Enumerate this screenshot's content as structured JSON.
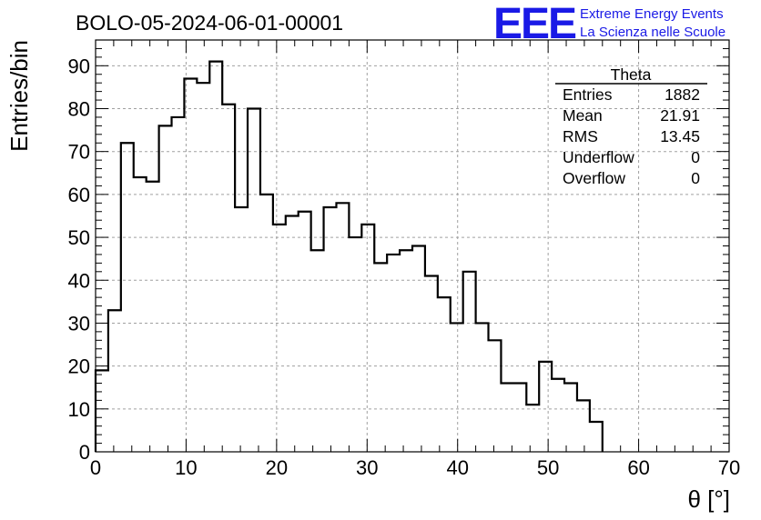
{
  "header": {
    "run_title": "BOLO-05-2024-06-01-00001",
    "logo_text": "EEE",
    "logo_line1": "Extreme Energy Events",
    "logo_line2": "La Scienza nelle Scuole"
  },
  "stats_box": {
    "title": "Theta",
    "rows": [
      {
        "label": "Entries",
        "value": "1882"
      },
      {
        "label": "Mean",
        "value": "21.91"
      },
      {
        "label": "RMS",
        "value": "13.45"
      },
      {
        "label": "Underflow",
        "value": "0"
      },
      {
        "label": "Overflow",
        "value": "0"
      }
    ]
  },
  "chart_data": {
    "type": "histogram",
    "title": "BOLO-05-2024-06-01-00001",
    "xlabel": "θ [°]",
    "ylabel": "Entries/bin",
    "xlim": [
      0,
      70
    ],
    "ylim": [
      0,
      96
    ],
    "grid": true,
    "legend": "top-right stats box",
    "bin_width": 1.4,
    "bin_start": 0,
    "x_ticks": [
      0,
      10,
      20,
      30,
      40,
      50,
      60,
      70
    ],
    "y_ticks": [
      0,
      10,
      20,
      30,
      40,
      50,
      60,
      70,
      80,
      90
    ],
    "values": [
      19,
      33,
      72,
      64,
      63,
      76,
      78,
      87,
      86,
      91,
      81,
      57,
      80,
      60,
      53,
      55,
      56,
      47,
      57,
      58,
      50,
      53,
      44,
      46,
      47,
      48,
      41,
      36,
      30,
      42,
      30,
      26,
      16,
      16,
      11,
      21,
      17,
      16,
      12,
      7
    ],
    "line_color": "#000000",
    "grid_color": "#a0a0a0"
  }
}
